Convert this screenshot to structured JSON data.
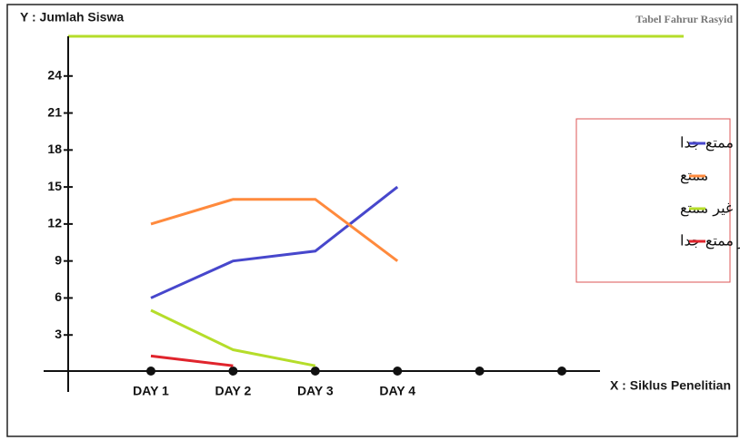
{
  "chart_data": {
    "type": "line",
    "title": "Tabel Fahrur Rasyid",
    "ylabel": "Y : Jumlah Siswa",
    "xlabel": "X : Siklus Penelitian",
    "categories": [
      "DAY 1",
      "DAY 2",
      "DAY 3",
      "DAY 4",
      null,
      null
    ],
    "series": [
      {
        "name": "ممتع جدا",
        "color": "#4747cc",
        "values": [
          6,
          9,
          9.8,
          15,
          null,
          null
        ]
      },
      {
        "name": "ممتع",
        "color": "#ff8a3d",
        "values": [
          12,
          14,
          14,
          9,
          null,
          null
        ]
      },
      {
        "name": "غير ممتع",
        "color": "#b5dd2a",
        "values": [
          5,
          1.8,
          0.5,
          null,
          null,
          null
        ]
      },
      {
        "name": "غير ممتع جدا",
        "color": "#e0242c",
        "values": [
          1.3,
          0.5,
          null,
          null,
          null,
          null
        ]
      }
    ],
    "ylim": [
      0,
      27
    ],
    "yticks": [
      3,
      6,
      9,
      12,
      15,
      18,
      21,
      24
    ],
    "legend": "right"
  }
}
